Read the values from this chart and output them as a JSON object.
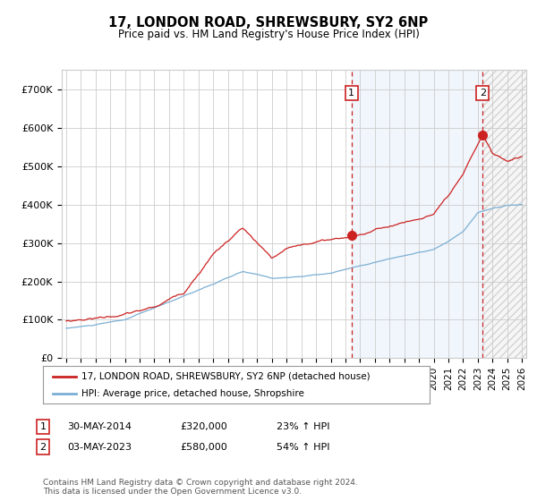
{
  "title": "17, LONDON ROAD, SHREWSBURY, SY2 6NP",
  "subtitle": "Price paid vs. HM Land Registry's House Price Index (HPI)",
  "footnote": "Contains HM Land Registry data © Crown copyright and database right 2024.\nThis data is licensed under the Open Government Licence v3.0.",
  "legend_line1": "17, LONDON ROAD, SHREWSBURY, SY2 6NP (detached house)",
  "legend_line2": "HPI: Average price, detached house, Shropshire",
  "annotation1_date": "30-MAY-2014",
  "annotation1_price": "£320,000",
  "annotation1_hpi": "23% ↑ HPI",
  "annotation2_date": "03-MAY-2023",
  "annotation2_price": "£580,000",
  "annotation2_hpi": "54% ↑ HPI",
  "hpi_color": "#7bafd4",
  "price_color": "#cc2222",
  "point_color": "#cc2222",
  "bg_color": "#ffffff",
  "grid_color": "#cccccc",
  "shade_color": "#ddeeff",
  "ylim": [
    0,
    750000
  ],
  "yticks": [
    0,
    100000,
    200000,
    300000,
    400000,
    500000,
    600000,
    700000
  ],
  "ytick_labels": [
    "£0",
    "£100K",
    "£200K",
    "£300K",
    "£400K",
    "£500K",
    "£600K",
    "£700K"
  ],
  "year_start": 1995,
  "year_end": 2026,
  "purchase1_year": 2014.41,
  "purchase1_price": 320000,
  "purchase2_year": 2023.33,
  "purchase2_price": 580000,
  "hpi_anchors_x": [
    1995,
    1997,
    1999,
    2002,
    2004,
    2007,
    2009,
    2011,
    2013,
    2014,
    2016,
    2018,
    2020,
    2021,
    2022,
    2023,
    2024,
    2025,
    2026
  ],
  "hpi_anchors_y": [
    78000,
    87000,
    100000,
    145000,
    178000,
    225000,
    208000,
    212000,
    222000,
    232000,
    252000,
    270000,
    285000,
    305000,
    330000,
    380000,
    390000,
    398000,
    400000
  ],
  "price_anchors_x": [
    1995,
    1997,
    1999,
    2001,
    2003,
    2005,
    2007,
    2009,
    2010,
    2012,
    2014.41,
    2016,
    2017,
    2018,
    2019,
    2020,
    2021,
    2022,
    2023.33,
    2024,
    2025,
    2026
  ],
  "price_anchors_y": [
    97000,
    107000,
    118000,
    135000,
    175000,
    280000,
    347000,
    263000,
    285000,
    305000,
    320000,
    338000,
    350000,
    360000,
    370000,
    383000,
    425000,
    475000,
    580000,
    530000,
    510000,
    525000
  ]
}
